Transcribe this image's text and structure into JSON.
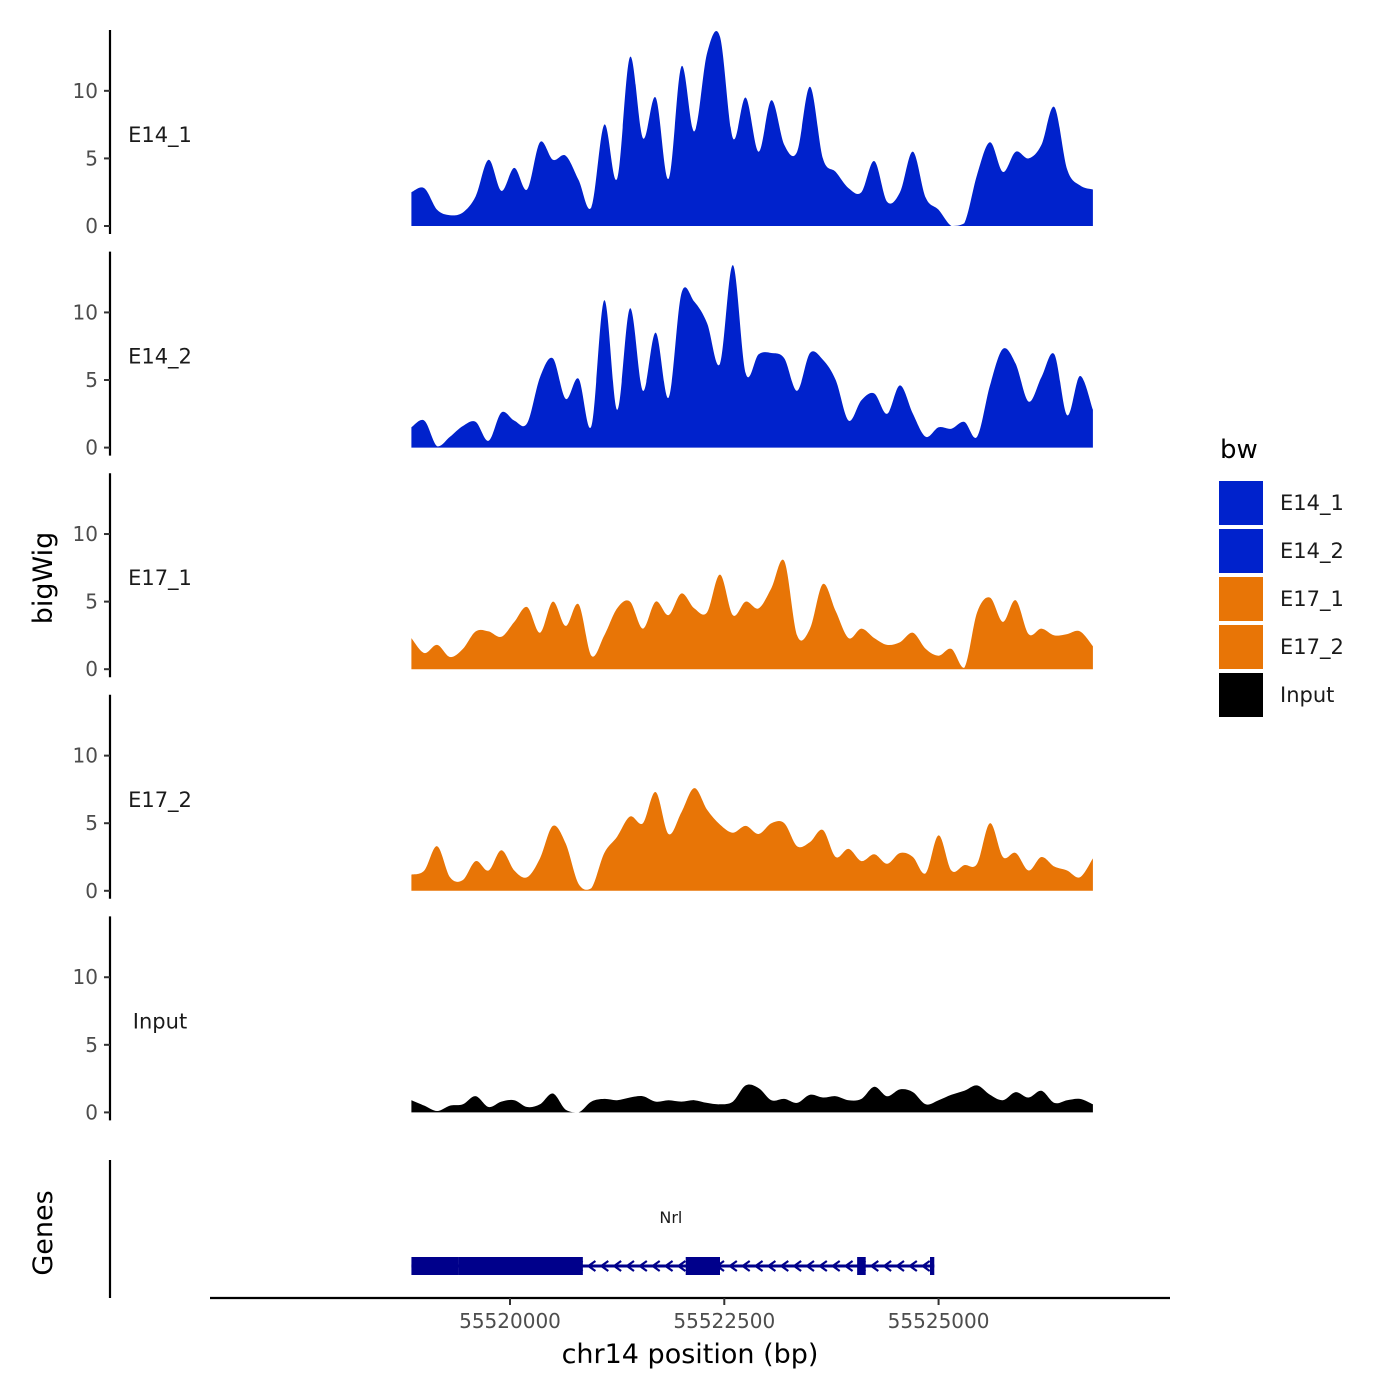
{
  "chart_data": {
    "type": "area",
    "ylabel": "bigWig",
    "genes_label": "Genes",
    "xlabel": "chr14 position (bp)",
    "xlim": [
      55516500,
      55527700
    ],
    "x_ticks": [
      55520000,
      55522500,
      55525000
    ],
    "x_tick_labels": [
      "55520000",
      "55522500",
      "55525000"
    ],
    "ylim": [
      0,
      14.5
    ],
    "y_ticks": [
      0,
      5,
      10
    ],
    "y_tick_labels": [
      "0",
      "5",
      "10"
    ],
    "legend": {
      "title": "bw",
      "entries": [
        {
          "label": "E14_1",
          "color": "#0022CC"
        },
        {
          "label": "E14_2",
          "color": "#0022CC"
        },
        {
          "label": "E17_1",
          "color": "#E87506"
        },
        {
          "label": "E17_2",
          "color": "#E87506"
        },
        {
          "label": "Input",
          "color": "#000000"
        }
      ]
    },
    "x": [
      55518850,
      55519000,
      55519150,
      55519300,
      55519450,
      55519600,
      55519750,
      55519900,
      55520050,
      55520200,
      55520350,
      55520500,
      55520650,
      55520800,
      55520950,
      55521100,
      55521250,
      55521400,
      55521550,
      55521700,
      55521850,
      55522000,
      55522150,
      55522300,
      55522450,
      55522600,
      55522750,
      55522900,
      55523050,
      55523200,
      55523350,
      55523500,
      55523650,
      55523800,
      55523950,
      55524100,
      55524250,
      55524400,
      55524550,
      55524700,
      55524850,
      55525000,
      55525150,
      55525300,
      55525450,
      55525600,
      55525750,
      55525900,
      55526050,
      55526200,
      55526350,
      55526500,
      55526650,
      55526800
    ],
    "series": [
      {
        "name": "E14_1",
        "color": "#0022CC",
        "values": [
          2.5,
          2.8,
          1.2,
          0.8,
          1.0,
          2.2,
          4.9,
          2.6,
          4.3,
          2.7,
          6.2,
          4.9,
          5.2,
          3.4,
          1.4,
          7.5,
          3.5,
          12.5,
          6.5,
          9.5,
          3.5,
          11.8,
          7.0,
          12.8,
          14.0,
          6.5,
          9.5,
          5.5,
          9.3,
          6.0,
          5.5,
          10.3,
          5.0,
          4.0,
          2.8,
          2.5,
          4.8,
          1.8,
          2.5,
          5.5,
          2.1,
          1.2,
          0.0,
          0.2,
          3.8,
          6.2,
          4.0,
          5.5,
          5.0,
          6.0,
          8.8,
          4.2,
          3.0,
          2.7
        ]
      },
      {
        "name": "E14_2",
        "color": "#0022CC",
        "values": [
          1.5,
          2.0,
          0.1,
          0.8,
          1.6,
          1.9,
          0.5,
          2.6,
          2.0,
          1.8,
          5.2,
          6.6,
          3.6,
          5.1,
          1.6,
          10.9,
          2.8,
          10.3,
          4.2,
          8.5,
          3.7,
          11.4,
          10.8,
          9.2,
          6.2,
          13.5,
          5.5,
          6.9,
          7.0,
          6.6,
          4.2,
          7.0,
          6.5,
          5.0,
          2.0,
          3.5,
          4.0,
          2.5,
          4.6,
          2.5,
          0.8,
          1.5,
          1.4,
          1.9,
          0.8,
          4.6,
          7.3,
          6.2,
          3.4,
          5.2,
          6.9,
          2.4,
          5.3,
          2.8
        ]
      },
      {
        "name": "E17_1",
        "color": "#E87506",
        "values": [
          2.3,
          1.2,
          1.8,
          0.9,
          1.5,
          2.8,
          2.8,
          2.4,
          3.5,
          4.6,
          2.7,
          5.0,
          3.2,
          4.8,
          1.0,
          2.5,
          4.5,
          5.0,
          3.0,
          5.0,
          4.0,
          5.6,
          4.5,
          4.2,
          7.0,
          4.0,
          5.0,
          4.5,
          6.0,
          8.0,
          2.5,
          3.0,
          6.3,
          4.3,
          2.3,
          3.0,
          2.3,
          1.8,
          2.0,
          2.7,
          1.5,
          1.0,
          1.5,
          0.1,
          4.2,
          5.3,
          3.5,
          5.1,
          2.6,
          3.0,
          2.5,
          2.6,
          2.8,
          1.7
        ]
      },
      {
        "name": "E17_2",
        "color": "#E87506",
        "values": [
          1.2,
          1.5,
          3.3,
          1.0,
          0.8,
          2.2,
          1.5,
          3.0,
          1.5,
          1.0,
          2.4,
          4.8,
          3.5,
          0.5,
          0.2,
          2.8,
          4.0,
          5.5,
          5.0,
          7.3,
          4.2,
          5.8,
          7.6,
          6.0,
          4.9,
          4.3,
          4.8,
          4.2,
          5.0,
          5.0,
          3.3,
          3.6,
          4.5,
          2.5,
          3.1,
          2.2,
          2.7,
          2.0,
          2.8,
          2.5,
          1.3,
          4.1,
          1.5,
          1.9,
          2.0,
          5.0,
          2.5,
          2.8,
          1.5,
          2.5,
          1.8,
          1.5,
          1.0,
          2.4
        ]
      },
      {
        "name": "Input",
        "color": "#000000",
        "values": [
          0.9,
          0.5,
          0.1,
          0.5,
          0.6,
          1.2,
          0.4,
          0.8,
          0.9,
          0.4,
          0.6,
          1.4,
          0.2,
          0.0,
          0.8,
          1.0,
          0.9,
          1.1,
          1.2,
          0.8,
          0.9,
          0.8,
          0.9,
          0.7,
          0.6,
          0.8,
          2.0,
          1.8,
          0.9,
          1.0,
          0.7,
          1.3,
          1.1,
          1.2,
          0.9,
          1.0,
          1.9,
          1.2,
          1.7,
          1.5,
          0.6,
          0.9,
          1.3,
          1.6,
          2.0,
          1.3,
          0.9,
          1.5,
          1.1,
          1.6,
          0.7,
          0.9,
          1.0,
          0.6
        ]
      }
    ],
    "gene": {
      "name": "Nrl",
      "strand": "-",
      "start": 55518850,
      "end": 55524950,
      "exons": [
        [
          55518850,
          55519400
        ],
        [
          55519400,
          55520850
        ],
        [
          55522050,
          55522450
        ],
        [
          55524050,
          55524150
        ],
        [
          55524900,
          55524950
        ]
      ]
    }
  }
}
